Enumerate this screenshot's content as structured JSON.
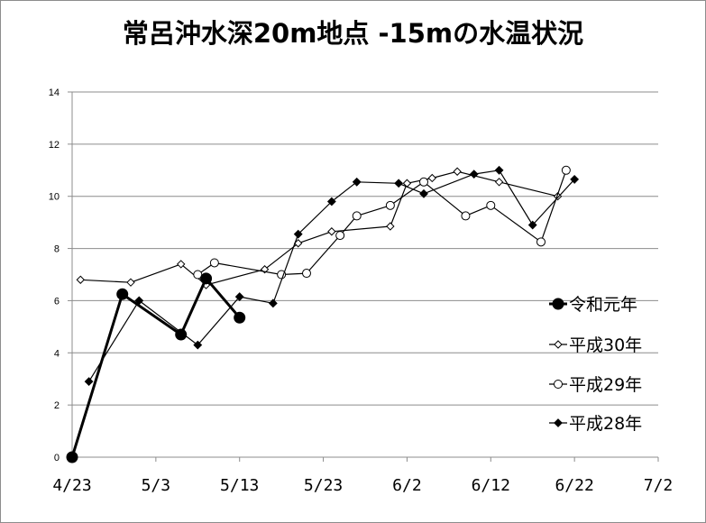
{
  "chart_data": {
    "type": "line",
    "title": "常呂沖水深20m地点 -15mの水温状況",
    "xlabel": "",
    "ylabel": "",
    "ylim": [
      0,
      14
    ],
    "y_ticks": [
      "0",
      "2",
      "4",
      "6",
      "8",
      "10",
      "12",
      "14"
    ],
    "x_ticks": [
      "4/23",
      "5/3",
      "5/13",
      "5/23",
      "6/2",
      "6/12",
      "6/22",
      "7/2"
    ],
    "x_tick_dates": [
      "2000-04-23",
      "2000-05-03",
      "2000-05-13",
      "2000-05-23",
      "2000-06-02",
      "2000-06-12",
      "2000-06-22",
      "2000-07-02"
    ],
    "grid": "horizontal",
    "legend_position": "right",
    "series": [
      {
        "name": "令和元年",
        "marker": "circle-filled-large",
        "color": "#000000",
        "points": [
          {
            "x": "04-23",
            "y": 0.0
          },
          {
            "x": "04-29",
            "y": 6.25
          },
          {
            "x": "05-06",
            "y": 4.7
          },
          {
            "x": "05-09",
            "y": 6.85
          },
          {
            "x": "05-13",
            "y": 5.35
          }
        ]
      },
      {
        "name": "平成30年",
        "marker": "diamond-open",
        "color": "#000000",
        "points": [
          {
            "x": "04-24",
            "y": 6.8
          },
          {
            "x": "04-30",
            "y": 6.7
          },
          {
            "x": "05-06",
            "y": 7.4
          },
          {
            "x": "05-09",
            "y": 6.6
          },
          {
            "x": "05-16",
            "y": 7.2
          },
          {
            "x": "05-20",
            "y": 8.2
          },
          {
            "x": "05-24",
            "y": 8.65
          },
          {
            "x": "05-31",
            "y": 8.85
          },
          {
            "x": "06-02",
            "y": 10.5
          },
          {
            "x": "06-05",
            "y": 10.7
          },
          {
            "x": "06-08",
            "y": 10.95
          },
          {
            "x": "06-13",
            "y": 10.55
          },
          {
            "x": "06-20",
            "y": 10.0
          }
        ]
      },
      {
        "name": "平成29年",
        "marker": "circle-open",
        "color": "#000000",
        "points": [
          {
            "x": "05-08",
            "y": 7.0
          },
          {
            "x": "05-10",
            "y": 7.45
          },
          {
            "x": "05-18",
            "y": 7.0
          },
          {
            "x": "05-21",
            "y": 7.05
          },
          {
            "x": "05-25",
            "y": 8.5
          },
          {
            "x": "05-27",
            "y": 9.25
          },
          {
            "x": "05-31",
            "y": 9.65
          },
          {
            "x": "06-04",
            "y": 10.55
          },
          {
            "x": "06-09",
            "y": 9.25
          },
          {
            "x": "06-12",
            "y": 9.65
          },
          {
            "x": "06-18",
            "y": 8.25
          },
          {
            "x": "06-21",
            "y": 11.0
          }
        ]
      },
      {
        "name": "平成28年",
        "marker": "diamond-filled",
        "color": "#000000",
        "points": [
          {
            "x": "04-25",
            "y": 2.9
          },
          {
            "x": "05-01",
            "y": 6.0
          },
          {
            "x": "05-08",
            "y": 4.3
          },
          {
            "x": "05-13",
            "y": 6.15
          },
          {
            "x": "05-17",
            "y": 5.9
          },
          {
            "x": "05-20",
            "y": 8.55
          },
          {
            "x": "05-24",
            "y": 9.8
          },
          {
            "x": "05-27",
            "y": 10.55
          },
          {
            "x": "06-01",
            "y": 10.5
          },
          {
            "x": "06-04",
            "y": 10.1
          },
          {
            "x": "06-10",
            "y": 10.85
          },
          {
            "x": "06-13",
            "y": 11.0
          },
          {
            "x": "06-17",
            "y": 8.9
          },
          {
            "x": "06-22",
            "y": 10.65
          }
        ]
      }
    ]
  }
}
